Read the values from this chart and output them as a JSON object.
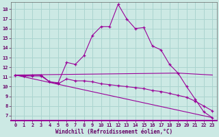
{
  "xlabel": "Windchill (Refroidissement éolien,°C)",
  "bg_color": "#cce9e4",
  "grid_color": "#aad4cf",
  "line_color": "#990099",
  "label_color": "#660066",
  "ylim": [
    6.5,
    18.7
  ],
  "xlim": [
    -0.5,
    23.5
  ],
  "yticks": [
    7,
    8,
    9,
    10,
    11,
    12,
    13,
    14,
    15,
    16,
    17,
    18
  ],
  "xticks": [
    0,
    1,
    2,
    3,
    4,
    5,
    6,
    7,
    8,
    9,
    10,
    11,
    12,
    13,
    14,
    15,
    16,
    17,
    18,
    19,
    20,
    21,
    22,
    23
  ],
  "line1_x": [
    0,
    1,
    2,
    3,
    4,
    5,
    6,
    7,
    8,
    9,
    10,
    11,
    12,
    13,
    14,
    15,
    16,
    17,
    18,
    19,
    20,
    21,
    22,
    23
  ],
  "line1_y": [
    11.2,
    11.1,
    11.2,
    11.2,
    10.5,
    10.4,
    12.5,
    12.3,
    13.2,
    15.3,
    16.2,
    16.2,
    18.5,
    17.0,
    16.0,
    16.1,
    14.2,
    13.8,
    12.3,
    11.4,
    10.0,
    8.7,
    7.4,
    6.8
  ],
  "line2_x": [
    0,
    19,
    23
  ],
  "line2_y": [
    11.2,
    11.4,
    11.2
  ],
  "line3_x": [
    0,
    1,
    2,
    3,
    4,
    5,
    6,
    7,
    8,
    9,
    10,
    11,
    12,
    13,
    14,
    15,
    16,
    17,
    18,
    19,
    20,
    21,
    22,
    23
  ],
  "line3_y": [
    11.2,
    11.1,
    11.1,
    11.1,
    10.5,
    10.3,
    10.8,
    10.6,
    10.6,
    10.5,
    10.3,
    10.2,
    10.1,
    10.0,
    9.9,
    9.8,
    9.6,
    9.5,
    9.3,
    9.1,
    8.9,
    8.5,
    8.0,
    7.5
  ],
  "line4_x": [
    0,
    23
  ],
  "line4_y": [
    11.2,
    6.8
  ]
}
